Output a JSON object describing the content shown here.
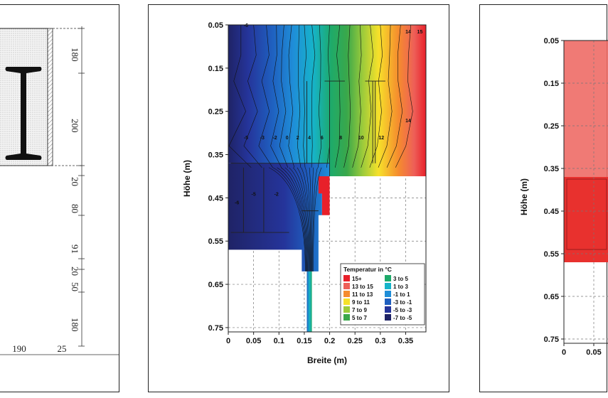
{
  "left_panel": {
    "dimensions_right": [
      "180",
      "200",
      "20",
      "80",
      "91",
      "20",
      "50",
      "180"
    ],
    "dimensions_bottom": [
      "190",
      "25"
    ]
  },
  "chart_data": [
    {
      "type": "heatmap",
      "xlabel": "Breite (m)",
      "ylabel": "Höhe (m)",
      "x_ticks": [
        "0",
        "0.05",
        "0.1",
        "0.15",
        "0.2",
        "0.25",
        "0.3",
        "0.35"
      ],
      "y_ticks": [
        "0.05",
        "0.15",
        "0.25",
        "0.35",
        "0.45",
        "0.55",
        "0.65",
        "0.75"
      ],
      "xlim": [
        0,
        0.39
      ],
      "ylim": [
        0.05,
        0.76
      ],
      "grid": true,
      "legend_placement": "bottom-right",
      "legend_title": "Temperatur in °C",
      "legend": [
        {
          "label": "15+",
          "color": "#e8202a"
        },
        {
          "label": "13 to 15",
          "color": "#ee5f58"
        },
        {
          "label": "11 to 13",
          "color": "#f58c2e"
        },
        {
          "label": "9 to 11",
          "color": "#f6e12a"
        },
        {
          "label": "7 to 9",
          "color": "#9ccb3b"
        },
        {
          "label": "5 to 7",
          "color": "#3aa84a"
        },
        {
          "label": "3 to 5",
          "color": "#1eaa6a"
        },
        {
          "label": "1 to 3",
          "color": "#16b3c9"
        },
        {
          "label": "-1 to 1",
          "color": "#1f8ed8"
        },
        {
          "label": "-3 to -1",
          "color": "#1f5fbf"
        },
        {
          "label": "-5 to -3",
          "color": "#25349a"
        },
        {
          "label": "-7 to -5",
          "color": "#1f2366"
        }
      ],
      "contour_labels": [
        {
          "text": "-6",
          "x": 0.035,
          "y": 0.05
        },
        {
          "text": "14",
          "x": 0.355,
          "y": 0.065
        },
        {
          "text": "15",
          "x": 0.378,
          "y": 0.065
        },
        {
          "text": "-5",
          "x": 0.035,
          "y": 0.31
        },
        {
          "text": "-3",
          "x": 0.067,
          "y": 0.31
        },
        {
          "text": "-2",
          "x": 0.092,
          "y": 0.31
        },
        {
          "text": "0",
          "x": 0.116,
          "y": 0.31
        },
        {
          "text": "2",
          "x": 0.137,
          "y": 0.31
        },
        {
          "text": "4",
          "x": 0.16,
          "y": 0.31
        },
        {
          "text": "6",
          "x": 0.185,
          "y": 0.31
        },
        {
          "text": "8",
          "x": 0.222,
          "y": 0.31
        },
        {
          "text": "10",
          "x": 0.262,
          "y": 0.31
        },
        {
          "text": "12",
          "x": 0.302,
          "y": 0.31
        },
        {
          "text": "14",
          "x": 0.355,
          "y": 0.27
        },
        {
          "text": "-6",
          "x": 0.017,
          "y": 0.46
        },
        {
          "text": "-5",
          "x": 0.05,
          "y": 0.44
        },
        {
          "text": "-2",
          "x": 0.095,
          "y": 0.44
        }
      ]
    },
    {
      "type": "heatmap",
      "ylabel": "Höhe (m)",
      "x_ticks": [
        "0",
        "0.05"
      ],
      "y_ticks": [
        "0.05",
        "0.15",
        "0.25",
        "0.35",
        "0.45",
        "0.55",
        "0.65",
        "0.75"
      ],
      "ylim": [
        0.05,
        0.76
      ],
      "grid": true
    }
  ]
}
